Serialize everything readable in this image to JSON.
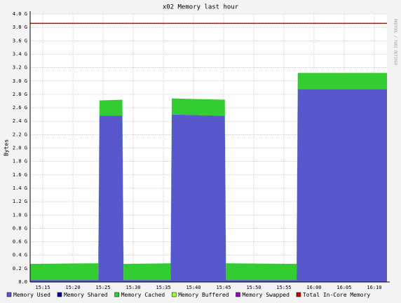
{
  "chart_data": {
    "type": "area",
    "title": "x02 Memory last hour",
    "y_label": "Bytes",
    "side_text": "RRDTOOL / TOBI OETIKER",
    "x": [
      912.9,
      924.2,
      924.4,
      928.2,
      928.4,
      936.2,
      936.4,
      945.2,
      945.4,
      957.1,
      957.3,
      972.1
    ],
    "series": [
      {
        "name": "Memory Used",
        "color": "#5858cc",
        "stacked": true,
        "values": [
          0.03,
          0.03,
          2.48,
          2.48,
          0.03,
          0.03,
          2.5,
          2.48,
          0.03,
          0.03,
          2.88,
          2.88
        ]
      },
      {
        "name": "Memory Shared",
        "color": "#0000a0",
        "stacked": true,
        "values": [
          0,
          0,
          0,
          0,
          0,
          0,
          0,
          0,
          0,
          0,
          0,
          0
        ]
      },
      {
        "name": "Memory Cached",
        "color": "#33cc33",
        "stacked": true,
        "values": [
          0.24,
          0.25,
          0.23,
          0.24,
          0.24,
          0.25,
          0.24,
          0.24,
          0.25,
          0.24,
          0.24,
          0.24
        ]
      },
      {
        "name": "Memory Buffered",
        "color": "#99ff33",
        "stacked": true,
        "values": [
          0,
          0,
          0,
          0,
          0,
          0,
          0,
          0,
          0,
          0,
          0,
          0
        ]
      },
      {
        "name": "Memory Swapped",
        "color": "#9900cc",
        "stacked": true,
        "values": [
          0,
          0,
          0,
          0,
          0,
          0,
          0,
          0,
          0,
          0,
          0,
          0
        ]
      },
      {
        "name": "Total In-Core Memory",
        "color": "#cc0000",
        "stacked": false,
        "values": [
          3.86,
          3.86,
          3.86,
          3.86,
          3.86,
          3.86,
          3.86,
          3.86,
          3.86,
          3.86,
          3.86,
          3.86
        ]
      }
    ],
    "xlim": [
      912.9,
      972.1
    ],
    "xticks": [
      {
        "value": 915,
        "label": "15:15"
      },
      {
        "value": 920,
        "label": "15:20"
      },
      {
        "value": 925,
        "label": "15:25"
      },
      {
        "value": 930,
        "label": "15:30"
      },
      {
        "value": 935,
        "label": "15:35"
      },
      {
        "value": 940,
        "label": "15:40"
      },
      {
        "value": 945,
        "label": "15:45"
      },
      {
        "value": 950,
        "label": "15:50"
      },
      {
        "value": 955,
        "label": "15:55"
      },
      {
        "value": 960,
        "label": "16:00"
      },
      {
        "value": 965,
        "label": "16:05"
      },
      {
        "value": 970,
        "label": "16:10"
      }
    ],
    "ylim": [
      0,
      4
    ],
    "yticks": [
      {
        "value": 0,
        "label": "0.0"
      },
      {
        "value": 0.2,
        "label": "0.2 G"
      },
      {
        "value": 0.4,
        "label": "0.4 G"
      },
      {
        "value": 0.6,
        "label": "0.6 G"
      },
      {
        "value": 0.8,
        "label": "0.8 G"
      },
      {
        "value": 1,
        "label": "1.0 G"
      },
      {
        "value": 1.2,
        "label": "1.2 G"
      },
      {
        "value": 1.4,
        "label": "1.4 G"
      },
      {
        "value": 1.6,
        "label": "1.6 G"
      },
      {
        "value": 1.8,
        "label": "1.8 G"
      },
      {
        "value": 2,
        "label": "2.0 G"
      },
      {
        "value": 2.2,
        "label": "2.2 G"
      },
      {
        "value": 2.4,
        "label": "2.4 G"
      },
      {
        "value": 2.6,
        "label": "2.6 G"
      },
      {
        "value": 2.8,
        "label": "2.8 G"
      },
      {
        "value": 3,
        "label": "3.0 G"
      },
      {
        "value": 3.2,
        "label": "3.2 G"
      },
      {
        "value": 3.4,
        "label": "3.4 G"
      },
      {
        "value": 3.6,
        "label": "3.6 G"
      },
      {
        "value": 3.8,
        "label": "3.8 G"
      },
      {
        "value": 4,
        "label": "4.0 G"
      }
    ],
    "grid": true
  }
}
